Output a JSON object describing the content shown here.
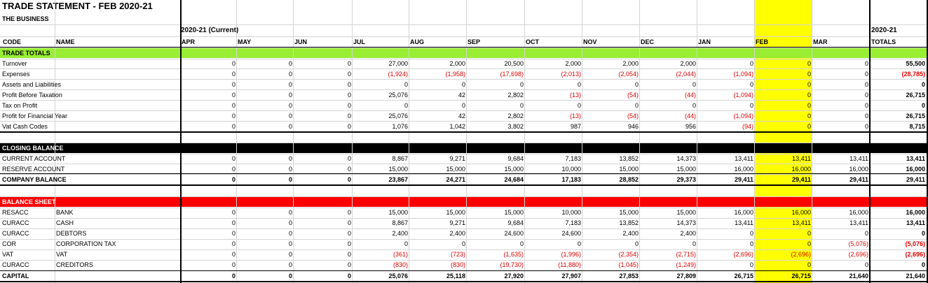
{
  "title": "TRADE STATEMENT - FEB 2020-21",
  "subtitle": "THE BUSINESS",
  "period_label": "2020-21 (Current)",
  "totals_year": "2020-21",
  "headers": {
    "code": "CODE",
    "name": "NAME",
    "totals": "TOTALS"
  },
  "months": [
    "APR",
    "MAY",
    "JUN",
    "JUL",
    "AUG",
    "SEP",
    "OCT",
    "NOV",
    "DEC",
    "JAN",
    "FEB",
    "MAR"
  ],
  "highlight_month": "FEB",
  "colors": {
    "trade_band": "#99ee33",
    "closing_band": "#000000",
    "balance_band": "#ff0000",
    "highlight": "#ffff00",
    "negative": "#e00000"
  },
  "sections": {
    "trade": {
      "label": "TRADE TOTALS",
      "rows": [
        {
          "code": "Turnover",
          "name": "",
          "values": [
            "0",
            "0",
            "0",
            "27,000",
            "2,000",
            "20,500",
            "2,000",
            "2,000",
            "2,000",
            "0",
            "0",
            "0"
          ],
          "total": "55,500"
        },
        {
          "code": "Expenses",
          "name": "",
          "values": [
            "0",
            "0",
            "0",
            "(1,924)",
            "(1,958)",
            "(17,698)",
            "(2,013)",
            "(2,054)",
            "(2,044)",
            "(1,094)",
            "0",
            "0"
          ],
          "total": "(28,785)"
        },
        {
          "code": "Assets and Liabilities",
          "name": "",
          "values": [
            "0",
            "0",
            "0",
            "0",
            "0",
            "0",
            "0",
            "0",
            "0",
            "0",
            "0",
            "0"
          ],
          "total": "0"
        },
        {
          "code": "Profit Before Taxation",
          "name": "",
          "values": [
            "0",
            "0",
            "0",
            "25,076",
            "42",
            "2,802",
            "(13)",
            "(54)",
            "(44)",
            "(1,094)",
            "0",
            "0"
          ],
          "total": "26,715"
        },
        {
          "code": "Tax on Profit",
          "name": "",
          "values": [
            "0",
            "0",
            "0",
            "0",
            "0",
            "0",
            "0",
            "0",
            "0",
            "0",
            "0",
            "0"
          ],
          "total": "0"
        },
        {
          "code": "Profit for Financial Year",
          "name": "",
          "values": [
            "0",
            "0",
            "0",
            "25,076",
            "42",
            "2,802",
            "(13)",
            "(54)",
            "(44)",
            "(1,094)",
            "0",
            "0"
          ],
          "total": "26,715"
        },
        {
          "code": "Vat Cash Codes",
          "name": "",
          "values": [
            "0",
            "0",
            "0",
            "1,076",
            "1,042",
            "3,802",
            "987",
            "946",
            "956",
            "(94)",
            "0",
            "0"
          ],
          "total": "8,715"
        }
      ]
    },
    "closing": {
      "label": "CLOSING BALANCE",
      "rows": [
        {
          "code": "CURRENT ACCOUNT",
          "name": "",
          "values": [
            "0",
            "0",
            "0",
            "8,867",
            "9,271",
            "9,684",
            "7,183",
            "13,852",
            "14,373",
            "13,411",
            "13,411",
            "13,411"
          ],
          "total": "13,411"
        },
        {
          "code": "RESERVE ACCOUNT",
          "name": "",
          "values": [
            "0",
            "0",
            "0",
            "15,000",
            "15,000",
            "15,000",
            "10,000",
            "15,000",
            "15,000",
            "16,000",
            "16,000",
            "16,000"
          ],
          "total": "16,000"
        },
        {
          "code": "COMPANY BALANCE",
          "name": "",
          "values": [
            "0",
            "0",
            "0",
            "23,867",
            "24,271",
            "24,684",
            "17,183",
            "28,852",
            "29,373",
            "29,411",
            "29,411",
            "29,411"
          ],
          "total": "29,411"
        }
      ]
    },
    "balance": {
      "label": "BALANCE SHEET",
      "rows": [
        {
          "code": "RESACC",
          "name": "BANK",
          "values": [
            "0",
            "0",
            "0",
            "15,000",
            "15,000",
            "15,000",
            "10,000",
            "15,000",
            "15,000",
            "16,000",
            "16,000",
            "16,000"
          ],
          "total": "16,000"
        },
        {
          "code": "CURACC",
          "name": "CASH",
          "values": [
            "0",
            "0",
            "0",
            "8,867",
            "9,271",
            "9,684",
            "7,183",
            "13,852",
            "14,373",
            "13,411",
            "13,411",
            "13,411"
          ],
          "total": "13,411"
        },
        {
          "code": "CURACC",
          "name": "DEBTORS",
          "values": [
            "0",
            "0",
            "0",
            "2,400",
            "2,400",
            "24,600",
            "24,600",
            "2,400",
            "2,400",
            "0",
            "0",
            "0"
          ],
          "total": "0"
        },
        {
          "code": "COR",
          "name": "CORPORATION TAX",
          "values": [
            "0",
            "0",
            "0",
            "0",
            "0",
            "0",
            "0",
            "0",
            "0",
            "0",
            "0",
            "(5,076)"
          ],
          "total": "(5,076)"
        },
        {
          "code": "VAT",
          "name": "VAT",
          "values": [
            "0",
            "0",
            "0",
            "(361)",
            "(723)",
            "(1,635)",
            "(1,996)",
            "(2,354)",
            "(2,715)",
            "(2,696)",
            "(2,696)",
            "(2,696)"
          ],
          "total": "(2,696)"
        },
        {
          "code": "CURACC",
          "name": "CREDITORS",
          "values": [
            "0",
            "0",
            "0",
            "(830)",
            "(830)",
            "(19,730)",
            "(11,880)",
            "(1,045)",
            "(1,249)",
            "0",
            "0",
            "0"
          ],
          "total": "0"
        },
        {
          "code": "CAPITAL",
          "name": "",
          "values": [
            "0",
            "0",
            "0",
            "25,076",
            "25,118",
            "27,920",
            "27,907",
            "27,853",
            "27,809",
            "26,715",
            "26,715",
            "21,640"
          ],
          "total": "21,640"
        }
      ]
    }
  }
}
